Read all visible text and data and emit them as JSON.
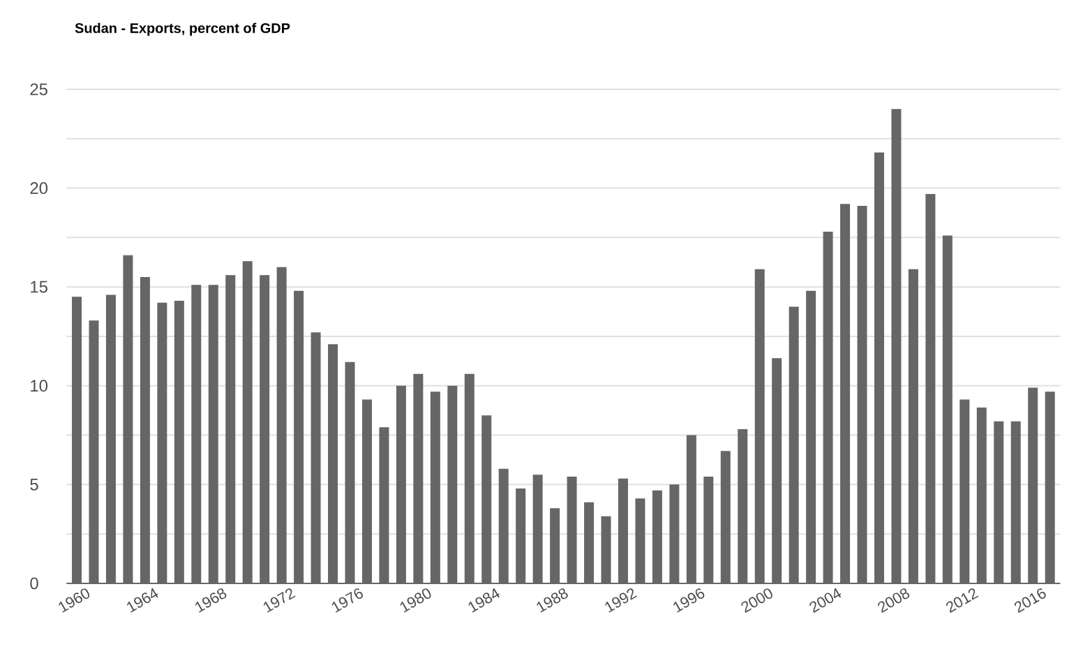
{
  "chart_data": {
    "type": "bar",
    "title": "Sudan - Exports, percent of GDP",
    "categories": [
      "1960",
      null,
      null,
      null,
      "1964",
      null,
      null,
      null,
      "1968",
      null,
      null,
      null,
      "1972",
      null,
      null,
      null,
      "1976",
      null,
      null,
      null,
      "1980",
      null,
      null,
      null,
      "1984",
      null,
      null,
      null,
      "1988",
      null,
      null,
      null,
      "1992",
      null,
      null,
      null,
      "1996",
      null,
      null,
      null,
      "2000",
      null,
      null,
      null,
      "2004",
      null,
      null,
      null,
      "2008",
      null,
      null,
      null,
      "2012",
      null,
      null,
      null,
      "2016",
      null
    ],
    "values": [
      14.5,
      13.3,
      14.6,
      16.6,
      15.5,
      14.2,
      14.3,
      15.1,
      15.1,
      15.6,
      16.3,
      15.6,
      16.0,
      14.8,
      12.7,
      12.1,
      11.2,
      9.3,
      7.9,
      10.0,
      10.6,
      9.7,
      10.0,
      10.6,
      8.5,
      5.8,
      4.8,
      5.5,
      3.8,
      5.4,
      4.1,
      3.4,
      5.3,
      4.3,
      4.7,
      5.0,
      7.5,
      5.4,
      6.7,
      7.8,
      15.9,
      11.4,
      14.0,
      14.8,
      17.8,
      19.2,
      19.1,
      21.8,
      24.0,
      15.9,
      19.7,
      17.6,
      9.3,
      8.9,
      8.2,
      8.2,
      9.9,
      9.7
    ],
    "color": "#666666",
    "ylim": [
      0,
      25
    ],
    "yticks": [
      0,
      {
        "value": 2.5,
        "label": null
      },
      5,
      {
        "value": 7.5,
        "label": null
      },
      10,
      {
        "value": 12.5,
        "label": null
      },
      15,
      {
        "value": 17.5,
        "label": null
      },
      20,
      {
        "value": 22.5,
        "label": null
      },
      25
    ],
    "grid": "y"
  }
}
